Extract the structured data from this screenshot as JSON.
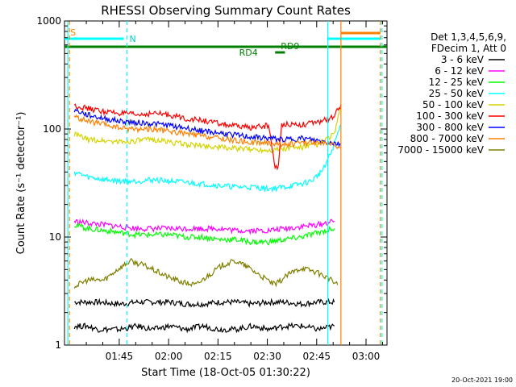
{
  "chart_data": {
    "type": "line",
    "title": "RHESSI Observing Summary Count Rates",
    "xlabel": "Start Time (18-Oct-05 01:30:22)",
    "ylabel": "Count Rate (s⁻¹ detector⁻¹)",
    "yscale": "log",
    "ylim": [
      1,
      1000
    ],
    "xlim_minutes_after_start": [
      -2,
      96
    ],
    "x_units": "minutes after 01:30:22",
    "x_ticks": [
      "01:45",
      "02:00",
      "02:15",
      "02:30",
      "02:45",
      "03:00"
    ],
    "y_ticks": [
      "1",
      "10",
      "100",
      "1000"
    ],
    "footer_date": "20-Oct-2021 19:00",
    "legend": {
      "placement": "right",
      "header": [
        "Det 1,3,4,5,6,9,",
        "FDecim 1, Att 0"
      ],
      "entries": [
        {
          "label": "3 - 6 keV",
          "color": "#000000"
        },
        {
          "label": "6 - 12 keV",
          "color": "#ff00ff"
        },
        {
          "label": "12 - 25 keV",
          "color": "#00ff00"
        },
        {
          "label": "25 - 50 keV",
          "color": "#00ffff"
        },
        {
          "label": "50 - 100 keV",
          "color": "#d4d400"
        },
        {
          "label": "100 - 300 keV",
          "color": "#ff0000"
        },
        {
          "label": "300 - 800 keV",
          "color": "#0000ff"
        },
        {
          "label": "800 - 7000 keV",
          "color": "#ff8000"
        },
        {
          "label": "7000 - 15000 keV",
          "color": "#808000"
        }
      ]
    },
    "annotations": [
      {
        "label": "S",
        "x": -1,
        "color": "#ff8000"
      },
      {
        "label": "N",
        "x": 17,
        "color": "#00cccc"
      },
      {
        "label": "RD9",
        "x": 63,
        "color": "#008000"
      },
      {
        "label": "RD4",
        "x": 56,
        "color": "#008000"
      }
    ],
    "flags": [
      {
        "name": "saa",
        "color": "#ff8000",
        "x": [
          [
            82,
            94
          ]
        ]
      },
      {
        "name": "night",
        "color": "#00ffff",
        "x": [
          [
            -2,
            16
          ],
          [
            78,
            94
          ]
        ]
      },
      {
        "name": "flare",
        "color": "#008000",
        "x": [
          [
            -2,
            96
          ]
        ]
      },
      {
        "name": "decimation",
        "color": "#008000",
        "x": [
          [
            62,
            65
          ]
        ]
      }
    ],
    "vlines": [
      {
        "x": -1,
        "color": "#00ffff",
        "style": "solid"
      },
      {
        "x": -0.5,
        "color": "#ff8000",
        "style": "dashed"
      },
      {
        "x": 17,
        "color": "#00ffff",
        "style": "dashed"
      },
      {
        "x": 78,
        "color": "#00ffff",
        "style": "solid"
      },
      {
        "x": 82,
        "color": "#ff8000",
        "style": "solid"
      },
      {
        "x": 94,
        "color": "#ff8000",
        "style": "dashed"
      },
      {
        "x": 94.5,
        "color": "#00ffff",
        "style": "dashed"
      }
    ],
    "series": [
      {
        "name": "3 - 6 keV",
        "color": "#000000",
        "x": [
          1,
          5,
          8,
          15,
          20,
          25,
          30,
          35,
          40,
          45,
          50,
          55,
          60,
          65,
          70,
          75,
          80
        ],
        "y": [
          2.5,
          2.5,
          2.5,
          2.4,
          2.5,
          2.5,
          2.5,
          2.4,
          2.4,
          2.5,
          2.5,
          2.4,
          2.5,
          2.5,
          2.4,
          2.5,
          2.5
        ]
      },
      {
        "name": "3 - 6 keV",
        "color": "#000000",
        "x": [
          1,
          5,
          8,
          15,
          20,
          25,
          30,
          35,
          40,
          45,
          50,
          55,
          60,
          65,
          70,
          75,
          80
        ],
        "y": [
          1.5,
          1.5,
          1.4,
          1.4,
          1.5,
          1.4,
          1.5,
          1.4,
          1.5,
          1.4,
          1.4,
          1.5,
          1.4,
          1.5,
          1.5,
          1.4,
          1.5
        ]
      },
      {
        "name": "6 - 12 keV",
        "color": "#ff00ff",
        "x": [
          1,
          5,
          10,
          15,
          20,
          25,
          30,
          35,
          40,
          45,
          50,
          55,
          60,
          65,
          70,
          75,
          80
        ],
        "y": [
          14,
          13.5,
          13,
          12.5,
          12,
          12,
          12,
          12,
          12,
          12,
          11.5,
          11.5,
          11.5,
          12,
          12.5,
          13,
          14
        ]
      },
      {
        "name": "12 - 25 keV",
        "color": "#00ff00",
        "x": [
          1,
          5,
          10,
          15,
          20,
          25,
          30,
          35,
          40,
          45,
          50,
          55,
          60,
          65,
          70,
          75,
          80
        ],
        "y": [
          13,
          12,
          11.5,
          11,
          10.5,
          10.5,
          10.5,
          10,
          10,
          9.5,
          9.5,
          9,
          9,
          9.5,
          10,
          11,
          12
        ]
      },
      {
        "name": "25 - 50 keV",
        "color": "#00ffff",
        "x": [
          1,
          5,
          10,
          15,
          20,
          25,
          30,
          35,
          40,
          45,
          50,
          55,
          60,
          65,
          70,
          73,
          76,
          79,
          82
        ],
        "y": [
          40,
          36,
          34,
          33,
          33,
          34,
          33,
          32,
          31,
          30,
          29,
          29,
          28,
          29,
          31,
          33,
          40,
          60,
          110
        ]
      },
      {
        "name": "50 - 100 keV",
        "color": "#d4d400",
        "x": [
          1,
          5,
          10,
          15,
          20,
          25,
          30,
          35,
          40,
          45,
          50,
          55,
          60,
          65,
          70,
          75,
          80,
          82
        ],
        "y": [
          90,
          80,
          78,
          76,
          78,
          80,
          76,
          72,
          70,
          68,
          66,
          65,
          64,
          66,
          68,
          72,
          90,
          160
        ]
      },
      {
        "name": "100 - 300 keV",
        "color": "#ff0000",
        "x": [
          1,
          5,
          10,
          15,
          20,
          25,
          30,
          35,
          40,
          45,
          50,
          55,
          60,
          62,
          63,
          64,
          65,
          70,
          75,
          80,
          82
        ],
        "y": [
          165,
          155,
          145,
          140,
          135,
          140,
          135,
          125,
          120,
          112,
          106,
          103,
          108,
          45,
          44,
          110,
          112,
          110,
          115,
          130,
          170
        ]
      },
      {
        "name": "300 - 800 keV",
        "color": "#0000ff",
        "x": [
          1,
          5,
          10,
          15,
          20,
          25,
          30,
          35,
          40,
          45,
          50,
          55,
          60,
          65,
          70,
          75,
          80,
          82
        ],
        "y": [
          150,
          135,
          125,
          118,
          115,
          112,
          108,
          102,
          96,
          92,
          88,
          84,
          82,
          80,
          82,
          78,
          74,
          72
        ]
      },
      {
        "name": "800 - 7000 keV",
        "color": "#ff8000",
        "x": [
          1,
          5,
          10,
          15,
          20,
          25,
          30,
          35,
          40,
          45,
          50,
          55,
          60,
          65,
          70,
          75,
          80,
          82
        ],
        "y": [
          130,
          118,
          110,
          102,
          100,
          100,
          95,
          90,
          86,
          82,
          78,
          75,
          74,
          72,
          74,
          76,
          70,
          68
        ]
      },
      {
        "name": "7000 - 15000 keV",
        "color": "#808000",
        "x": [
          1,
          5,
          10,
          14,
          18,
          22,
          26,
          30,
          34,
          38,
          42,
          46,
          50,
          54,
          58,
          62,
          66,
          70,
          74,
          78,
          81
        ],
        "y": [
          3.5,
          4,
          4,
          5,
          6,
          5.5,
          4.8,
          4.2,
          3.8,
          3.6,
          4.5,
          5.5,
          6,
          5.2,
          4.3,
          3.6,
          4.5,
          5.2,
          4.8,
          4.2,
          3.6
        ]
      }
    ]
  }
}
